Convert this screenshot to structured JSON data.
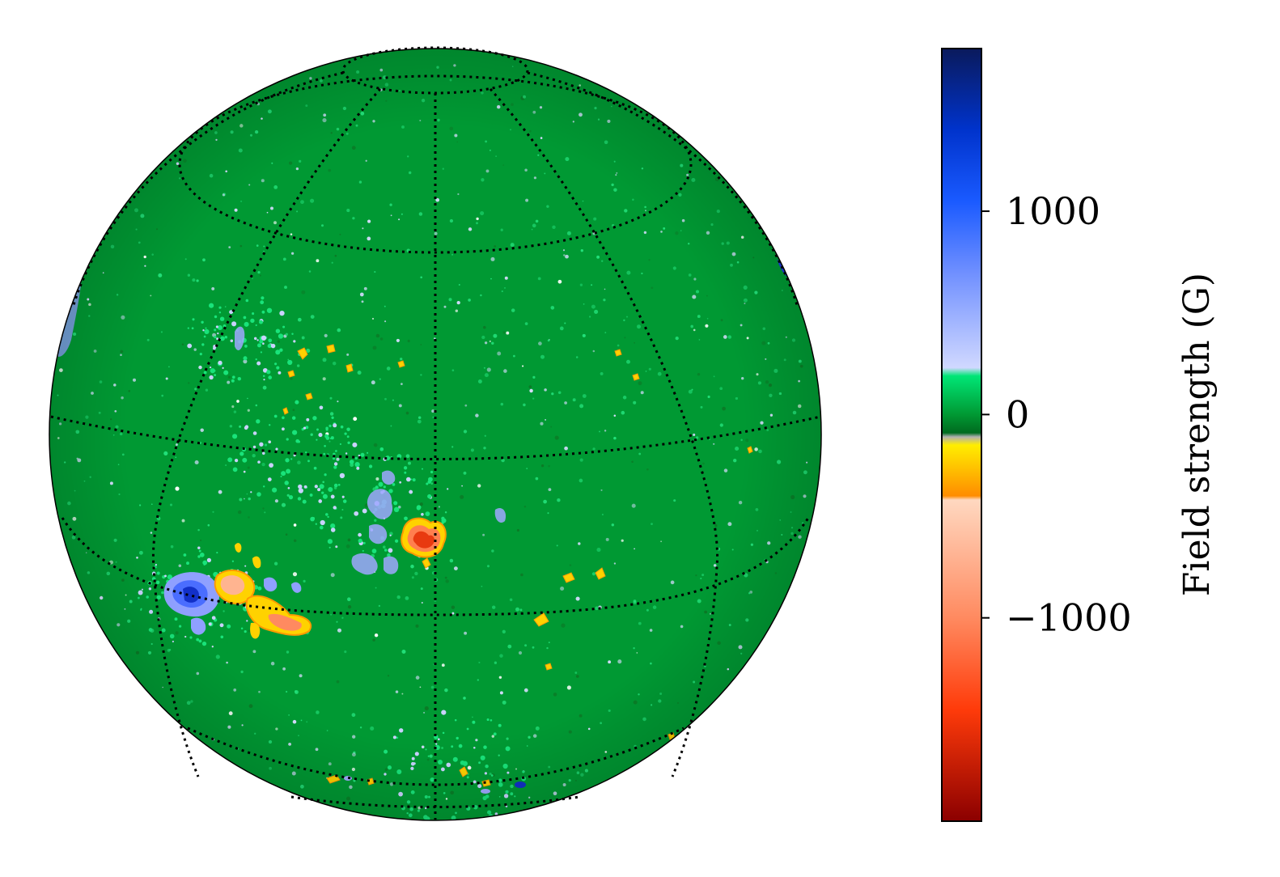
{
  "chart_data": {
    "type": "heatmap",
    "subject": "solar disk magnetogram",
    "colorbar": {
      "label": "Field strength (G)",
      "range": [
        -2000,
        1800
      ],
      "ticks": [
        {
          "value": 1000,
          "label": "1000"
        },
        {
          "value": 0,
          "label": "0"
        },
        {
          "value": -1000,
          "label": "−1000"
        }
      ],
      "stops": [
        {
          "value": 1800,
          "color": "#0a1a5c"
        },
        {
          "value": 1400,
          "color": "#0033cc"
        },
        {
          "value": 1050,
          "color": "#1a5aff"
        },
        {
          "value": 700,
          "color": "#6f8fff"
        },
        {
          "value": 230,
          "color": "#d0d8ff"
        },
        {
          "value": 190,
          "color": "#00e676"
        },
        {
          "value": 0,
          "color": "#009933"
        },
        {
          "value": -90,
          "color": "#006b1f"
        },
        {
          "value": -110,
          "color": "#b0b0b0"
        },
        {
          "value": -150,
          "color": "#ffee00"
        },
        {
          "value": -400,
          "color": "#ff8c00"
        },
        {
          "value": -420,
          "color": "#ffd8c0"
        },
        {
          "value": -1000,
          "color": "#ff8a60"
        },
        {
          "value": -1450,
          "color": "#ff3b0a"
        },
        {
          "value": -2000,
          "color": "#8b0000"
        }
      ]
    },
    "grid": {
      "style": "dotted",
      "meridians": 5,
      "parallels": 4
    },
    "disk_background_color": "#009933",
    "features": [
      {
        "polarity": "negative",
        "peak_gauss": -1700,
        "region": "center"
      },
      {
        "polarity": "positive",
        "peak_gauss": 1500,
        "region": "lower-left"
      },
      {
        "polarity": "negative",
        "peak_gauss": -900,
        "region": "lower-left"
      },
      {
        "polarity": "positive",
        "peak_gauss": 1200,
        "region": "bottom limb"
      }
    ]
  }
}
